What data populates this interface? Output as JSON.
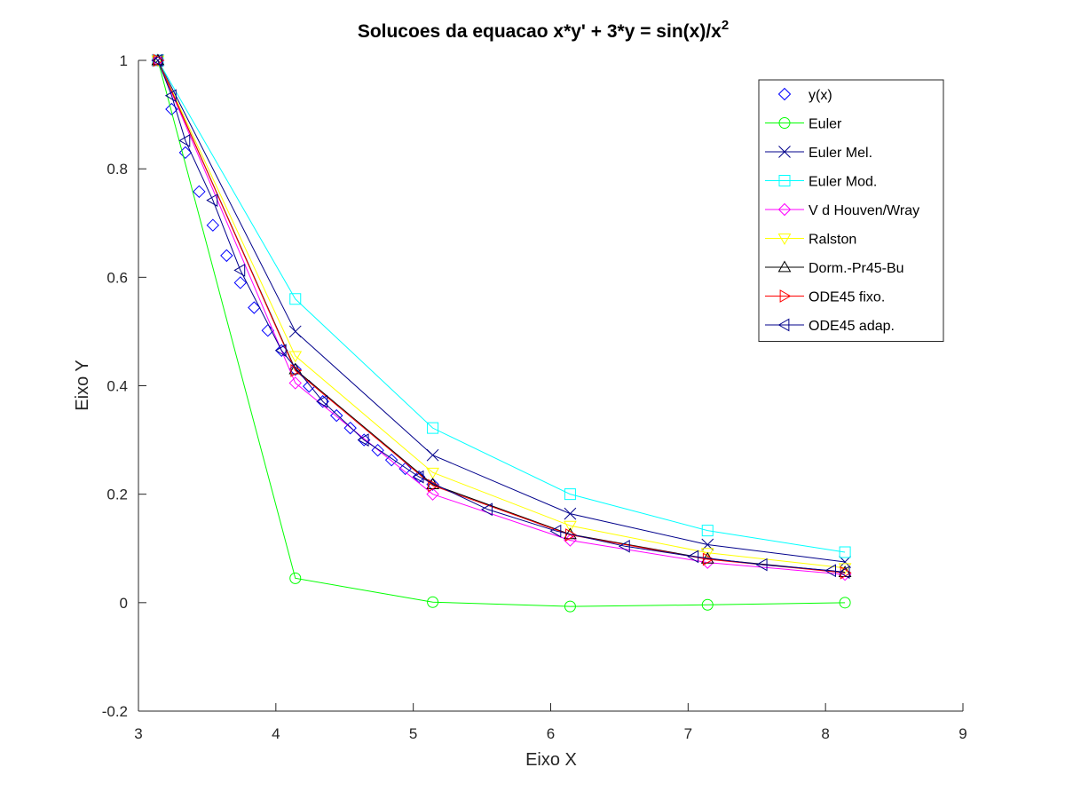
{
  "chart_data": {
    "type": "line",
    "title": "Solucoes da equacao x*y' + 3*y = sin(x)/x",
    "title_superscript": "2",
    "xlabel": "Eixo X",
    "ylabel": "Eixo Y",
    "xlim": [
      3,
      9
    ],
    "ylim": [
      -0.2,
      1
    ],
    "x_ticks": [
      3,
      4,
      5,
      6,
      7,
      8,
      9
    ],
    "y_ticks": [
      -0.2,
      0,
      0.2,
      0.4,
      0.6,
      0.8,
      1
    ],
    "x_tick_labels": [
      "3",
      "4",
      "5",
      "6",
      "7",
      "8",
      "9"
    ],
    "y_tick_labels": [
      "-0.2",
      "0",
      "0.2",
      "0.4",
      "0.6",
      "0.8",
      "1"
    ],
    "grid": false,
    "legend_position": "top-right",
    "series": [
      {
        "name": "y(x)",
        "color": "#0000ff",
        "marker": "diamond",
        "line": false,
        "x": [
          3.1416,
          3.2416,
          3.3416,
          3.4416,
          3.5416,
          3.6416,
          3.7416,
          3.8416,
          3.9416,
          4.0416,
          4.1416,
          4.2416,
          4.3416,
          4.4416,
          4.5416,
          4.6416,
          4.7416,
          4.8416,
          4.9416,
          5.0416,
          5.1416
        ],
        "y": [
          1.0,
          0.91,
          0.83,
          0.758,
          0.696,
          0.64,
          0.59,
          0.544,
          0.502,
          0.465,
          0.43,
          0.399,
          0.371,
          0.345,
          0.322,
          0.3,
          0.281,
          0.263,
          0.247,
          0.232,
          0.218
        ]
      },
      {
        "name": "Euler",
        "color": "#00ff00",
        "marker": "circle",
        "line": true,
        "x": [
          3.1416,
          4.1416,
          5.1416,
          6.1416,
          7.1416,
          8.1416
        ],
        "y": [
          1.0,
          0.045,
          0.001,
          -0.007,
          -0.004,
          0.0
        ]
      },
      {
        "name": "Euler Mel.",
        "color": "#00008b",
        "marker": "x",
        "line": true,
        "x": [
          3.1416,
          4.1416,
          5.1416,
          6.1416,
          7.1416,
          8.1416
        ],
        "y": [
          1.0,
          0.5,
          0.272,
          0.164,
          0.107,
          0.075
        ]
      },
      {
        "name": "Euler Mod.",
        "color": "#00ffff",
        "marker": "square",
        "line": true,
        "x": [
          3.1416,
          4.1416,
          5.1416,
          6.1416,
          7.1416,
          8.1416
        ],
        "y": [
          1.0,
          0.56,
          0.322,
          0.2,
          0.133,
          0.093
        ]
      },
      {
        "name": "V d Houven/Wray",
        "color": "#ff00ff",
        "marker": "diamond",
        "line": true,
        "x": [
          3.1416,
          4.1416,
          5.1416,
          6.1416,
          7.1416,
          8.1416
        ],
        "y": [
          1.0,
          0.405,
          0.2,
          0.115,
          0.074,
          0.052
        ]
      },
      {
        "name": "Ralston",
        "color": "#ffff00",
        "marker": "triangle-down",
        "line": true,
        "x": [
          3.1416,
          4.1416,
          5.1416,
          6.1416,
          7.1416,
          8.1416
        ],
        "y": [
          1.0,
          0.455,
          0.24,
          0.142,
          0.092,
          0.064
        ]
      },
      {
        "name": "Dorm.-Pr45-Bu",
        "color": "#000000",
        "marker": "triangle-up",
        "line": true,
        "x": [
          3.1416,
          4.1416,
          5.1416,
          6.1416,
          7.1416,
          8.1416
        ],
        "y": [
          1.0,
          0.43,
          0.218,
          0.126,
          0.081,
          0.056
        ]
      },
      {
        "name": "ODE45 fixo.",
        "color": "#ff0000",
        "marker": "triangle-right",
        "line": true,
        "x": [
          3.1416,
          4.1416,
          5.1416,
          6.1416,
          7.1416,
          8.1416
        ],
        "y": [
          1.0,
          0.428,
          0.216,
          0.125,
          0.08,
          0.055
        ]
      },
      {
        "name": "ODE45 adap.",
        "color": "#00008b",
        "marker": "triangle-left",
        "line": true,
        "x": [
          3.1416,
          3.2416,
          3.3416,
          3.5416,
          3.7416,
          4.0416,
          4.3416,
          4.6416,
          5.0416,
          5.5416,
          6.0416,
          6.5416,
          7.0416,
          7.5416,
          8.0416,
          8.1416
        ],
        "y": [
          1.0,
          0.935,
          0.852,
          0.742,
          0.613,
          0.465,
          0.371,
          0.3,
          0.232,
          0.172,
          0.132,
          0.104,
          0.085,
          0.07,
          0.059,
          0.056
        ]
      }
    ]
  }
}
